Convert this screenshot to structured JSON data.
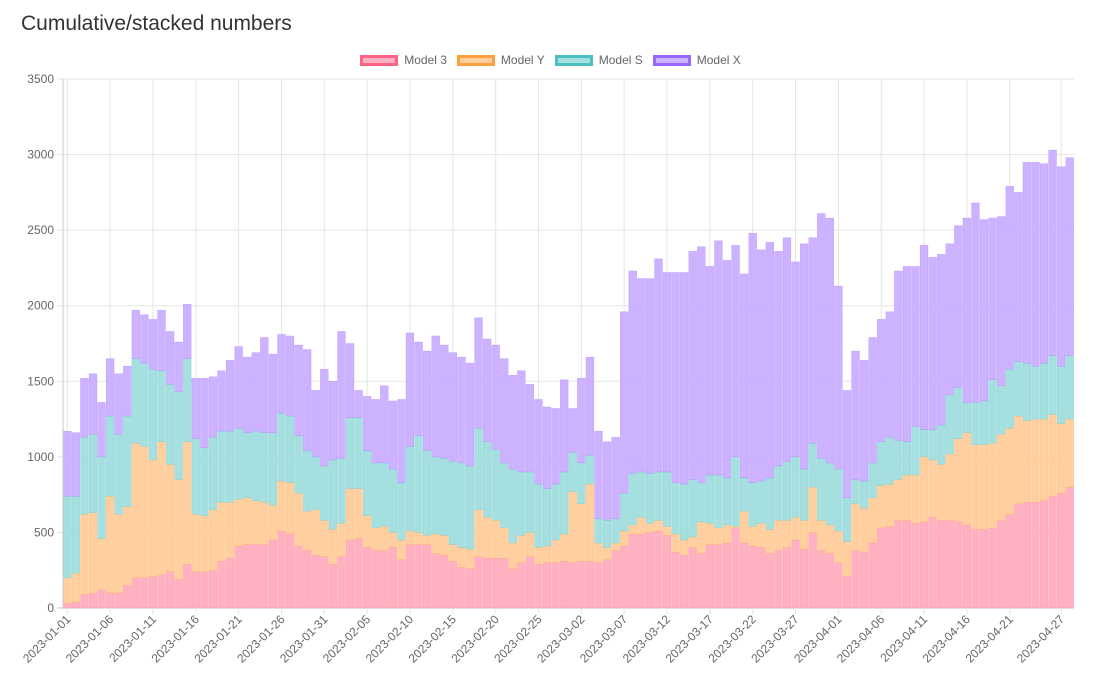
{
  "chart_data": {
    "type": "bar",
    "stacked": true,
    "title": "Cumulative/stacked numbers",
    "legend_position": "top-center",
    "grid": true,
    "ylim": [
      0,
      3500
    ],
    "y_ticks": [
      0,
      500,
      1000,
      1500,
      2000,
      2500,
      3000,
      3500
    ],
    "x_tick_labels": [
      "2023-01-01",
      "2023-01-06",
      "2023-01-11",
      "2023-01-16",
      "2023-01-21",
      "2023-01-26",
      "2023-01-31",
      "2023-02-05",
      "2023-02-10",
      "2023-02-15",
      "2023-02-20",
      "2023-02-25",
      "2023-03-02",
      "2023-03-07",
      "2023-03-12",
      "2023-03-17",
      "2023-03-22",
      "2023-03-27",
      "2023-04-01",
      "2023-04-06",
      "2023-04-11",
      "2023-04-16",
      "2023-04-21",
      "2023-04-27"
    ],
    "categories": [
      "2023-01-01",
      "2023-01-02",
      "2023-01-03",
      "2023-01-04",
      "2023-01-05",
      "2023-01-06",
      "2023-01-07",
      "2023-01-08",
      "2023-01-09",
      "2023-01-10",
      "2023-01-11",
      "2023-01-12",
      "2023-01-13",
      "2023-01-14",
      "2023-01-15",
      "2023-01-16",
      "2023-01-17",
      "2023-01-18",
      "2023-01-19",
      "2023-01-20",
      "2023-01-21",
      "2023-01-22",
      "2023-01-23",
      "2023-01-24",
      "2023-01-25",
      "2023-01-26",
      "2023-01-27",
      "2023-01-28",
      "2023-01-29",
      "2023-01-30",
      "2023-01-31",
      "2023-02-01",
      "2023-02-02",
      "2023-02-03",
      "2023-02-04",
      "2023-02-05",
      "2023-02-06",
      "2023-02-07",
      "2023-02-08",
      "2023-02-09",
      "2023-02-10",
      "2023-02-11",
      "2023-02-12",
      "2023-02-13",
      "2023-02-14",
      "2023-02-15",
      "2023-02-16",
      "2023-02-17",
      "2023-02-18",
      "2023-02-19",
      "2023-02-20",
      "2023-02-21",
      "2023-02-22",
      "2023-02-23",
      "2023-02-24",
      "2023-02-25",
      "2023-02-26",
      "2023-02-27",
      "2023-02-28",
      "2023-03-01",
      "2023-03-02",
      "2023-03-03",
      "2023-03-04",
      "2023-03-05",
      "2023-03-06",
      "2023-03-07",
      "2023-03-08",
      "2023-03-09",
      "2023-03-10",
      "2023-03-11",
      "2023-03-12",
      "2023-03-13",
      "2023-03-14",
      "2023-03-15",
      "2023-03-16",
      "2023-03-17",
      "2023-03-18",
      "2023-03-19",
      "2023-03-20",
      "2023-03-21",
      "2023-03-22",
      "2023-03-23",
      "2023-03-24",
      "2023-03-25",
      "2023-03-26",
      "2023-03-27",
      "2023-03-28",
      "2023-03-29",
      "2023-03-30",
      "2023-03-31",
      "2023-04-01",
      "2023-04-02",
      "2023-04-03",
      "2023-04-04",
      "2023-04-05",
      "2023-04-06",
      "2023-04-07",
      "2023-04-08",
      "2023-04-09",
      "2023-04-10",
      "2023-04-11",
      "2023-04-12",
      "2023-04-13",
      "2023-04-14",
      "2023-04-15",
      "2023-04-16",
      "2023-04-17",
      "2023-04-18",
      "2023-04-19",
      "2023-04-20",
      "2023-04-21",
      "2023-04-22",
      "2023-04-23",
      "2023-04-24",
      "2023-04-25",
      "2023-04-26",
      "2023-04-27",
      "2023-04-28"
    ],
    "totals": {
      "Model 3": [
        30,
        40,
        90,
        100,
        120,
        100,
        100,
        150,
        200,
        200,
        210,
        220,
        240,
        190,
        290,
        240,
        240,
        250,
        310,
        330,
        410,
        420,
        420,
        420,
        450,
        510,
        490,
        410,
        380,
        350,
        340,
        290,
        340,
        450,
        460,
        400,
        380,
        380,
        400,
        320,
        420,
        420,
        420,
        360,
        350,
        310,
        270,
        260,
        340,
        330,
        330,
        330,
        260,
        300,
        340,
        290,
        300,
        300,
        310,
        300,
        310,
        310,
        300,
        320,
        380,
        410,
        490,
        490,
        500,
        510,
        480,
        370,
        350,
        400,
        360,
        420,
        420,
        430,
        530,
        430,
        410,
        400,
        360,
        380,
        400,
        450,
        390,
        500,
        380,
        360,
        300,
        210,
        380,
        370,
        430,
        530,
        540,
        580,
        580,
        560,
        570,
        600,
        580,
        580,
        570,
        550,
        520,
        520,
        530,
        580,
        620,
        690,
        700,
        700,
        710,
        740,
        760,
        800
      ],
      "Model Y": [
        200,
        230,
        620,
        630,
        460,
        740,
        620,
        670,
        1090,
        1070,
        980,
        1100,
        950,
        850,
        1100,
        620,
        610,
        650,
        700,
        700,
        720,
        730,
        710,
        700,
        680,
        840,
        830,
        760,
        640,
        650,
        580,
        520,
        560,
        790,
        790,
        610,
        530,
        540,
        500,
        450,
        510,
        500,
        480,
        490,
        480,
        420,
        400,
        390,
        650,
        600,
        580,
        530,
        430,
        480,
        500,
        400,
        410,
        450,
        490,
        770,
        690,
        820,
        430,
        400,
        430,
        510,
        550,
        600,
        560,
        580,
        540,
        490,
        450,
        470,
        570,
        560,
        530,
        550,
        540,
        640,
        540,
        560,
        520,
        580,
        580,
        600,
        580,
        800,
        580,
        550,
        510,
        440,
        690,
        660,
        730,
        810,
        820,
        850,
        880,
        880,
        1000,
        980,
        950,
        1020,
        1120,
        1160,
        1080,
        1080,
        1090,
        1150,
        1190,
        1270,
        1240,
        1250,
        1250,
        1280,
        1220,
        1250
      ],
      "Model S": [
        740,
        740,
        1130,
        1150,
        1000,
        1270,
        1150,
        1270,
        1650,
        1620,
        1580,
        1570,
        1480,
        1430,
        1650,
        1120,
        1060,
        1130,
        1170,
        1170,
        1190,
        1160,
        1170,
        1160,
        1160,
        1290,
        1270,
        1140,
        1040,
        1000,
        940,
        980,
        990,
        1260,
        1260,
        1040,
        960,
        960,
        920,
        830,
        1070,
        1140,
        1040,
        1000,
        990,
        970,
        960,
        940,
        1190,
        1100,
        1050,
        960,
        920,
        900,
        900,
        820,
        790,
        820,
        900,
        1030,
        960,
        1010,
        590,
        580,
        590,
        760,
        890,
        900,
        890,
        900,
        900,
        830,
        820,
        850,
        830,
        880,
        880,
        860,
        1000,
        860,
        830,
        840,
        860,
        940,
        970,
        1000,
        920,
        1090,
        990,
        960,
        920,
        730,
        850,
        840,
        960,
        1100,
        1130,
        1110,
        1100,
        1200,
        1180,
        1180,
        1210,
        1410,
        1460,
        1360,
        1360,
        1370,
        1510,
        1470,
        1580,
        1630,
        1620,
        1600,
        1620,
        1670,
        1600,
        1670
      ],
      "Model X": [
        1170,
        1160,
        1520,
        1550,
        1360,
        1650,
        1550,
        1600,
        1970,
        1940,
        1910,
        1970,
        1830,
        1760,
        2010,
        1520,
        1520,
        1530,
        1570,
        1640,
        1730,
        1660,
        1690,
        1790,
        1680,
        1810,
        1800,
        1740,
        1710,
        1440,
        1580,
        1500,
        1830,
        1750,
        1440,
        1400,
        1380,
        1470,
        1370,
        1380,
        1820,
        1760,
        1700,
        1800,
        1740,
        1690,
        1660,
        1620,
        1920,
        1780,
        1740,
        1650,
        1540,
        1570,
        1480,
        1380,
        1330,
        1320,
        1510,
        1320,
        1520,
        1660,
        1170,
        1100,
        1130,
        1960,
        2230,
        2180,
        2180,
        2310,
        2220,
        2220,
        2220,
        2360,
        2390,
        2260,
        2430,
        2300,
        2400,
        2210,
        2480,
        2370,
        2420,
        2360,
        2450,
        2290,
        2410,
        2450,
        2610,
        2580,
        2130,
        1440,
        1700,
        1640,
        1790,
        1910,
        1960,
        2230,
        2260,
        2260,
        2400,
        2320,
        2340,
        2410,
        2530,
        2580,
        2680,
        2570,
        2580,
        2590,
        2790,
        2750,
        2950,
        2950,
        2940,
        3030,
        2920,
        2980
      ]
    },
    "series": [
      {
        "name": "Model 3",
        "fill": "#ffb1c1",
        "border": "#ff6384"
      },
      {
        "name": "Model Y",
        "fill": "#ffcf9f",
        "border": "#ff9f40"
      },
      {
        "name": "Model S",
        "fill": "#a5dfdf",
        "border": "#4bc0c0"
      },
      {
        "name": "Model X",
        "fill": "#ccb2ff",
        "border": "#9966ff"
      }
    ]
  }
}
